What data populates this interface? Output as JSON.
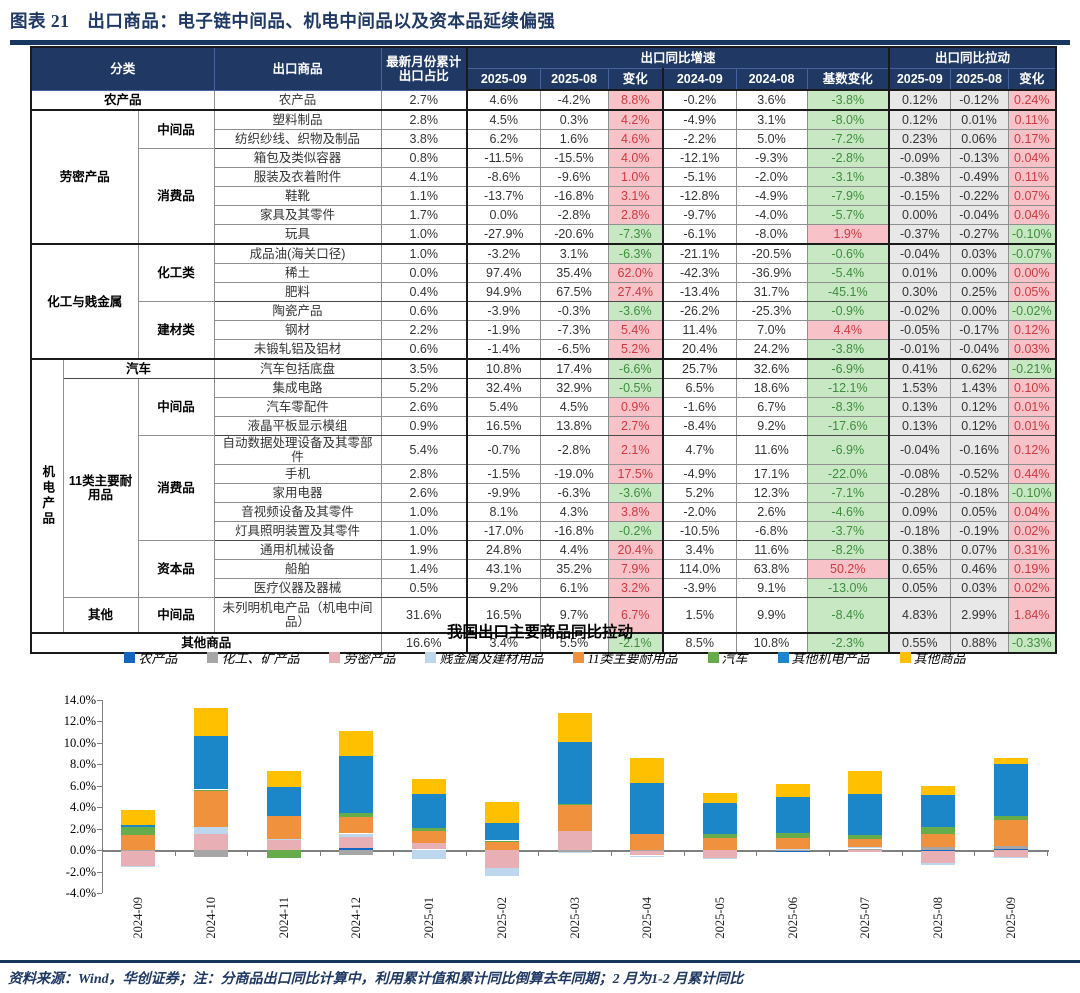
{
  "figure": {
    "title": "图表 21　出口商品：电子链中间品、机电中间品以及资本品延续偏强"
  },
  "colors": {
    "header_bg": "#1F3864",
    "rule": "#17375E",
    "pos_bg": "#F8C3C8",
    "pos_text": "#CE3A41",
    "neg_bg": "#C8E8C3",
    "neg_text": "#3E8C3E",
    "pull_bg": "#E9E8E8"
  },
  "table": {
    "header": {
      "category": "分类",
      "product": "出口商品",
      "share": "最新月份累计出口占比",
      "growth_group": "出口同比增速",
      "pull_group": "出口同比拉动",
      "growth_cols": [
        "2025-09",
        "2025-08",
        "变化",
        "2024-09",
        "2024-08",
        "基数变化"
      ],
      "pull_cols": [
        "2025-09",
        "2025-08",
        "变化"
      ]
    },
    "rows": [
      {
        "cells": [
          {
            "t": "农产品",
            "cs": 3,
            "b": 1
          },
          {
            "t": "农产品"
          }
        ],
        "vals": [
          "2.7%",
          "4.6%",
          "-4.2%",
          "8.8%",
          "-0.2%",
          "3.6%",
          "-3.8%",
          "0.12%",
          "-0.12%",
          "0.24%"
        ],
        "sep": "M"
      },
      {
        "cells": [
          {
            "t": "劳密产品",
            "cs": 2,
            "rs": 7,
            "b": 1
          },
          {
            "t": "中间品",
            "rs": 2,
            "b": 1
          },
          {
            "t": "塑料制品"
          }
        ],
        "vals": [
          "2.8%",
          "4.5%",
          "0.3%",
          "4.2%",
          "-4.9%",
          "3.1%",
          "-8.0%",
          "0.12%",
          "0.01%",
          "0.11%"
        ],
        "aft": "M"
      },
      {
        "cells": [
          {
            "t": "纺织纱线、织物及制品"
          }
        ],
        "vals": [
          "3.8%",
          "6.2%",
          "1.6%",
          "4.6%",
          "-2.2%",
          "5.0%",
          "-7.2%",
          "0.23%",
          "0.06%",
          "0.17%"
        ],
        "sep": "S"
      },
      {
        "cells": [
          {
            "t": "消费品",
            "rs": 5,
            "b": 1
          },
          {
            "t": "箱包及类似容器"
          }
        ],
        "vals": [
          "0.8%",
          "-11.5%",
          "-15.5%",
          "4.0%",
          "-12.1%",
          "-9.3%",
          "-2.8%",
          "-0.09%",
          "-0.13%",
          "0.04%"
        ],
        "aft": "S"
      },
      {
        "cells": [
          {
            "t": "服装及衣着附件"
          }
        ],
        "vals": [
          "4.1%",
          "-8.6%",
          "-9.6%",
          "1.0%",
          "-5.1%",
          "-2.0%",
          "-3.1%",
          "-0.38%",
          "-0.49%",
          "0.11%"
        ]
      },
      {
        "cells": [
          {
            "t": "鞋靴"
          }
        ],
        "vals": [
          "1.1%",
          "-13.7%",
          "-16.8%",
          "3.1%",
          "-12.8%",
          "-4.9%",
          "-7.9%",
          "-0.15%",
          "-0.22%",
          "0.07%"
        ]
      },
      {
        "cells": [
          {
            "t": "家具及其零件"
          }
        ],
        "vals": [
          "1.7%",
          "0.0%",
          "-2.8%",
          "2.8%",
          "-9.7%",
          "-4.0%",
          "-5.7%",
          "0.00%",
          "-0.04%",
          "0.04%"
        ]
      },
      {
        "cells": [
          {
            "t": "玩具"
          }
        ],
        "vals": [
          "1.0%",
          "-27.9%",
          "-20.6%",
          "-7.3%",
          "-6.1%",
          "-8.0%",
          "1.9%",
          "-0.37%",
          "-0.27%",
          "-0.10%"
        ],
        "sep": "M"
      },
      {
        "cells": [
          {
            "t": "化工与贱金属",
            "cs": 2,
            "rs": 6,
            "b": 1
          },
          {
            "t": "化工类",
            "rs": 3,
            "b": 1
          },
          {
            "t": "成品油(海关口径)"
          }
        ],
        "vals": [
          "1.0%",
          "-3.2%",
          "3.1%",
          "-6.3%",
          "-21.1%",
          "-20.5%",
          "-0.6%",
          "-0.04%",
          "0.03%",
          "-0.07%"
        ],
        "aft": "M"
      },
      {
        "cells": [
          {
            "t": "稀土"
          }
        ],
        "vals": [
          "0.0%",
          "97.4%",
          "35.4%",
          "62.0%",
          "-42.3%",
          "-36.9%",
          "-5.4%",
          "0.01%",
          "0.00%",
          "0.00%"
        ]
      },
      {
        "cells": [
          {
            "t": "肥料"
          }
        ],
        "vals": [
          "0.4%",
          "94.9%",
          "67.5%",
          "27.4%",
          "-13.4%",
          "31.7%",
          "-45.1%",
          "0.30%",
          "0.25%",
          "0.05%"
        ],
        "sep": "S"
      },
      {
        "cells": [
          {
            "t": "建材类",
            "rs": 3,
            "b": 1
          },
          {
            "t": "陶瓷产品"
          }
        ],
        "vals": [
          "0.6%",
          "-3.9%",
          "-0.3%",
          "-3.6%",
          "-26.2%",
          "-25.3%",
          "-0.9%",
          "-0.02%",
          "0.00%",
          "-0.02%"
        ],
        "aft": "S"
      },
      {
        "cells": [
          {
            "t": "钢材"
          }
        ],
        "vals": [
          "2.2%",
          "-1.9%",
          "-7.3%",
          "5.4%",
          "11.4%",
          "7.0%",
          "4.4%",
          "-0.05%",
          "-0.17%",
          "0.12%"
        ]
      },
      {
        "cells": [
          {
            "t": "未锻轧铝及铝材"
          }
        ],
        "vals": [
          "0.6%",
          "-1.4%",
          "-6.5%",
          "5.2%",
          "20.4%",
          "24.2%",
          "-3.8%",
          "-0.01%",
          "-0.04%",
          "0.03%"
        ],
        "sep": "M"
      },
      {
        "cells": [
          {
            "t": "机电产品",
            "rs": 13,
            "b": 1,
            "v": 1
          },
          {
            "t": "汽车",
            "cs": 2,
            "b": 1
          },
          {
            "t": "汽车包括底盘"
          }
        ],
        "vals": [
          "3.5%",
          "10.8%",
          "17.4%",
          "-6.6%",
          "25.7%",
          "32.6%",
          "-6.9%",
          "0.41%",
          "0.62%",
          "-0.21%"
        ],
        "aft": "M",
        "sep": "S"
      },
      {
        "cells": [
          {
            "t": "11类主要耐用品",
            "rs": 11,
            "b": 1
          },
          {
            "t": "中间品",
            "rs": 3,
            "b": 1
          },
          {
            "t": "集成电路"
          }
        ],
        "vals": [
          "5.2%",
          "32.4%",
          "32.9%",
          "-0.5%",
          "6.5%",
          "18.6%",
          "-12.1%",
          "1.53%",
          "1.43%",
          "0.10%"
        ],
        "aft": "S"
      },
      {
        "cells": [
          {
            "t": "汽车零配件"
          }
        ],
        "vals": [
          "2.6%",
          "5.4%",
          "4.5%",
          "0.9%",
          "-1.6%",
          "6.7%",
          "-8.3%",
          "0.13%",
          "0.12%",
          "0.01%"
        ]
      },
      {
        "cells": [
          {
            "t": "液晶平板显示模组"
          }
        ],
        "vals": [
          "0.9%",
          "16.5%",
          "13.8%",
          "2.7%",
          "-8.4%",
          "9.2%",
          "-17.6%",
          "0.13%",
          "0.12%",
          "0.01%"
        ],
        "sep": "S"
      },
      {
        "cells": [
          {
            "t": "消费品",
            "rs": 5,
            "b": 1
          },
          {
            "t": "自动数据处理设备及其零部件"
          }
        ],
        "vals": [
          "5.4%",
          "-0.7%",
          "-2.8%",
          "2.1%",
          "4.7%",
          "11.6%",
          "-6.9%",
          "-0.04%",
          "-0.16%",
          "0.12%"
        ],
        "aft": "S"
      },
      {
        "cells": [
          {
            "t": "手机"
          }
        ],
        "vals": [
          "2.8%",
          "-1.5%",
          "-19.0%",
          "17.5%",
          "-4.9%",
          "17.1%",
          "-22.0%",
          "-0.08%",
          "-0.52%",
          "0.44%"
        ]
      },
      {
        "cells": [
          {
            "t": "家用电器"
          }
        ],
        "vals": [
          "2.6%",
          "-9.9%",
          "-6.3%",
          "-3.6%",
          "5.2%",
          "12.3%",
          "-7.1%",
          "-0.28%",
          "-0.18%",
          "-0.10%"
        ]
      },
      {
        "cells": [
          {
            "t": "音视频设备及其零件"
          }
        ],
        "vals": [
          "1.0%",
          "8.1%",
          "4.3%",
          "3.8%",
          "-2.0%",
          "2.6%",
          "-4.6%",
          "0.09%",
          "0.05%",
          "0.04%"
        ]
      },
      {
        "cells": [
          {
            "t": "灯具照明装置及其零件"
          }
        ],
        "vals": [
          "1.0%",
          "-17.0%",
          "-16.8%",
          "-0.2%",
          "-10.5%",
          "-6.8%",
          "-3.7%",
          "-0.18%",
          "-0.19%",
          "0.02%"
        ],
        "sep": "S"
      },
      {
        "cells": [
          {
            "t": "资本品",
            "rs": 3,
            "b": 1
          },
          {
            "t": "通用机械设备"
          }
        ],
        "vals": [
          "1.9%",
          "24.8%",
          "4.4%",
          "20.4%",
          "3.4%",
          "11.6%",
          "-8.2%",
          "0.38%",
          "0.07%",
          "0.31%"
        ],
        "aft": "S"
      },
      {
        "cells": [
          {
            "t": "船舶"
          }
        ],
        "vals": [
          "1.4%",
          "43.1%",
          "35.2%",
          "7.9%",
          "114.0%",
          "63.8%",
          "50.2%",
          "0.65%",
          "0.46%",
          "0.19%"
        ]
      },
      {
        "cells": [
          {
            "t": "医疗仪器及器械"
          }
        ],
        "vals": [
          "0.5%",
          "9.2%",
          "6.1%",
          "3.2%",
          "-3.9%",
          "9.1%",
          "-13.0%",
          "0.05%",
          "0.03%",
          "0.02%"
        ],
        "sep": "S"
      },
      {
        "cells": [
          {
            "t": "其他",
            "b": 1
          },
          {
            "t": "中间品",
            "b": 1
          },
          {
            "t": "未列明机电产品（机电中间品）"
          }
        ],
        "vals": [
          "31.6%",
          "16.5%",
          "9.7%",
          "6.7%",
          "1.5%",
          "9.9%",
          "-8.4%",
          "4.83%",
          "2.99%",
          "1.84%"
        ],
        "aft": "S",
        "sep": "M",
        "tall": 1
      },
      {
        "cells": [
          {
            "t": "其他商品",
            "cs": 4,
            "b": 1
          }
        ],
        "vals": [
          "16.6%",
          "3.4%",
          "5.5%",
          "-2.1%",
          "8.5%",
          "10.8%",
          "-2.3%",
          "0.55%",
          "0.88%",
          "-0.33%"
        ],
        "aft": "M"
      }
    ]
  },
  "chart": {
    "title": "我国出口主要商品同比拉动"
  },
  "chart_data": {
    "type": "bar",
    "stacked": true,
    "title": "我国出口主要商品同比拉动",
    "xlabel": "",
    "ylabel": "",
    "ylim": [
      -4,
      14
    ],
    "ytick_step": 2,
    "ytick_format": "0.0%",
    "grid": false,
    "legend_position": "top",
    "categories": [
      "2024-09",
      "2024-10",
      "2024-11",
      "2024-12",
      "2025-01",
      "2025-02",
      "2025-03",
      "2025-04",
      "2025-05",
      "2025-06",
      "2025-07",
      "2025-08",
      "2025-09"
    ],
    "series": [
      {
        "name": "农产品",
        "color": "#1565C0",
        "values": [
          0.0,
          0.05,
          0.0,
          0.2,
          0.0,
          0.0,
          0.05,
          0.0,
          0.0,
          -0.15,
          0.0,
          -0.12,
          0.12
        ]
      },
      {
        "name": "化工、矿产品",
        "color": "#A6A6A6",
        "values": [
          -0.1,
          -0.65,
          0.05,
          -0.5,
          0.05,
          0.05,
          -0.2,
          -0.05,
          0.05,
          0.05,
          0.15,
          0.28,
          0.27
        ]
      },
      {
        "name": "劳密产品",
        "color": "#E8B0B5",
        "values": [
          -1.4,
          1.5,
          0.9,
          1.05,
          0.6,
          -1.7,
          1.75,
          -0.45,
          -0.75,
          0.0,
          -0.2,
          -1.08,
          -0.64
        ]
      },
      {
        "name": "贱金属及建材用品",
        "color": "#BDD7EE",
        "values": [
          -0.1,
          0.65,
          0.1,
          0.3,
          -0.8,
          -0.7,
          -0.1,
          -0.05,
          -0.05,
          0.05,
          0.1,
          -0.21,
          -0.08
        ]
      },
      {
        "name": "11类主要耐用品",
        "color": "#F0913E",
        "values": [
          1.45,
          3.4,
          2.15,
          1.5,
          1.1,
          0.8,
          2.45,
          1.5,
          1.05,
          1.05,
          0.75,
          1.23,
          2.38
        ]
      },
      {
        "name": "汽车",
        "color": "#67AC4B",
        "values": [
          0.7,
          0.05,
          -0.7,
          0.4,
          0.3,
          0.05,
          0.05,
          0.0,
          0.4,
          0.45,
          0.4,
          0.62,
          0.41
        ]
      },
      {
        "name": "其他机电产品",
        "color": "#1B87C9",
        "values": [
          0.2,
          5.0,
          2.7,
          5.35,
          3.15,
          1.65,
          5.8,
          4.8,
          2.9,
          3.35,
          3.8,
          2.99,
          4.83
        ]
      },
      {
        "name": "其他商品",
        "color": "#FFC000",
        "values": [
          1.4,
          2.6,
          1.45,
          2.3,
          1.4,
          1.95,
          2.7,
          2.3,
          0.9,
          1.25,
          2.2,
          0.88,
          0.55
        ]
      }
    ]
  },
  "footer": {
    "source": "资料来源：Wind，华创证券；注：分商品出口同比计算中，利用累计值和累计同比倒算去年同期；2 月为1-2 月累计同比"
  }
}
